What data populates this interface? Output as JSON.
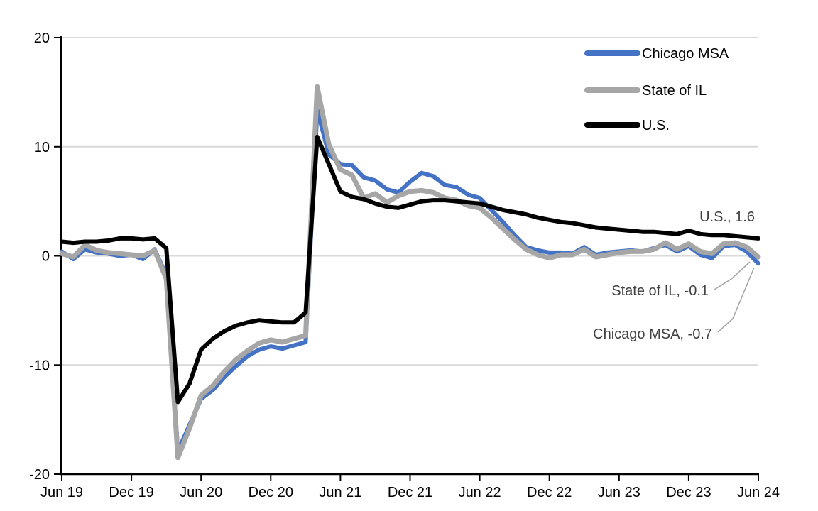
{
  "chart_data": {
    "type": "line",
    "title": "",
    "xlabel": "",
    "ylabel": "",
    "ylim": [
      -20,
      20
    ],
    "y_ticks": [
      20,
      10,
      0,
      -10,
      -20
    ],
    "grid": "horizontal",
    "gridline_color": "#D9D9D9",
    "axis_color": "#000000",
    "annotation_color": "#404040",
    "leader_color": "#A6A6A6",
    "legend_position": "top-right",
    "x_tick_labels": [
      "Jun 19",
      "Dec 19",
      "Jun 20",
      "Dec 20",
      "Jun 21",
      "Dec 21",
      "Jun 22",
      "Dec 22",
      "Jun 23",
      "Dec 23",
      "Jun 24"
    ],
    "x_months": [
      "Jun 19",
      "Jul 19",
      "Aug 19",
      "Sep 19",
      "Oct 19",
      "Nov 19",
      "Dec 19",
      "Jan 20",
      "Feb 20",
      "Mar 20",
      "Apr 20",
      "May 20",
      "Jun 20",
      "Jul 20",
      "Aug 20",
      "Sep 20",
      "Oct 20",
      "Nov 20",
      "Dec 20",
      "Jan 21",
      "Feb 21",
      "Mar 21",
      "Apr 21",
      "May 21",
      "Jun 21",
      "Jul 21",
      "Aug 21",
      "Sep 21",
      "Oct 21",
      "Nov 21",
      "Dec 21",
      "Jan 22",
      "Feb 22",
      "Mar 22",
      "Apr 22",
      "May 22",
      "Jun 22",
      "Jul 22",
      "Aug 22",
      "Sep 22",
      "Oct 22",
      "Nov 22",
      "Dec 22",
      "Jan 23",
      "Feb 23",
      "Mar 23",
      "Apr 23",
      "May 23",
      "Jun 23",
      "Jul 23",
      "Aug 23",
      "Sep 23",
      "Oct 23",
      "Nov 23",
      "Dec 23",
      "Jan 24",
      "Feb 24",
      "Mar 24",
      "Apr 24",
      "May 24",
      "Jun 24"
    ],
    "series": [
      {
        "name": "Chicago MSA",
        "color": "#4472C4",
        "last_value": -0.7,
        "values": [
          0.4,
          -0.3,
          0.6,
          0.3,
          0.2,
          0.0,
          0.1,
          -0.3,
          0.6,
          -1.8,
          -17.9,
          -15.5,
          -13.1,
          -12.3,
          -11.1,
          -10.1,
          -9.2,
          -8.6,
          -8.3,
          -8.5,
          -8.2,
          -7.9,
          13.4,
          9.3,
          8.4,
          8.3,
          7.2,
          6.9,
          6.1,
          5.8,
          6.8,
          7.6,
          7.3,
          6.5,
          6.3,
          5.6,
          5.3,
          4.2,
          3.1,
          1.9,
          0.8,
          0.5,
          0.3,
          0.3,
          0.2,
          0.8,
          0.1,
          0.3,
          0.4,
          0.5,
          0.4,
          0.7,
          1.0,
          0.4,
          0.9,
          0.1,
          -0.2,
          0.9,
          1.0,
          0.4,
          -0.7
        ]
      },
      {
        "name": "State of IL",
        "color": "#A6A6A6",
        "last_value": -0.1,
        "values": [
          0.2,
          -0.1,
          1.0,
          0.5,
          0.3,
          0.2,
          0.1,
          0.0,
          0.5,
          -2.1,
          -18.5,
          -15.8,
          -12.8,
          -11.9,
          -10.6,
          -9.5,
          -8.7,
          -8.0,
          -7.7,
          -7.9,
          -7.6,
          -7.3,
          15.5,
          10.2,
          7.9,
          7.4,
          5.3,
          5.7,
          4.9,
          5.5,
          5.9,
          6.0,
          5.8,
          5.3,
          5.1,
          4.6,
          4.4,
          3.5,
          2.5,
          1.5,
          0.6,
          0.1,
          -0.2,
          0.1,
          0.1,
          0.6,
          -0.1,
          0.1,
          0.3,
          0.4,
          0.4,
          0.6,
          1.2,
          0.6,
          1.1,
          0.4,
          0.2,
          1.1,
          1.2,
          0.8,
          -0.1
        ]
      },
      {
        "name": "U.S.",
        "color": "#000000",
        "last_value": 1.6,
        "values": [
          1.3,
          1.2,
          1.3,
          1.3,
          1.4,
          1.6,
          1.6,
          1.5,
          1.6,
          0.7,
          -13.4,
          -11.7,
          -8.6,
          -7.6,
          -6.9,
          -6.4,
          -6.1,
          -5.9,
          -6.0,
          -6.1,
          -6.1,
          -5.2,
          10.9,
          8.4,
          5.9,
          5.4,
          5.2,
          4.8,
          4.5,
          4.4,
          4.7,
          5.0,
          5.1,
          5.1,
          5.0,
          4.9,
          4.8,
          4.5,
          4.2,
          4.0,
          3.8,
          3.5,
          3.3,
          3.1,
          3.0,
          2.8,
          2.6,
          2.5,
          2.4,
          2.3,
          2.2,
          2.2,
          2.1,
          2.0,
          2.3,
          2.0,
          1.9,
          1.9,
          1.8,
          1.7,
          1.6
        ]
      }
    ],
    "legend": [
      "Chicago MSA",
      "State of IL",
      "U.S."
    ],
    "annotations": [
      {
        "text": "U.S., 1.6",
        "series": "U.S."
      },
      {
        "text": "State of IL, -0.1",
        "series": "State of IL"
      },
      {
        "text": "Chicago MSA, -0.7",
        "series": "Chicago MSA"
      }
    ]
  }
}
